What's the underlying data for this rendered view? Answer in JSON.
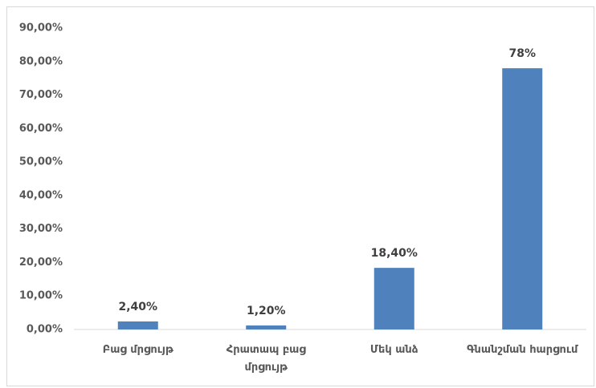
{
  "chart_data": {
    "type": "bar",
    "categories": [
      "Բաց մրցույթ",
      "Հրատապ բաց մրցույթ",
      "Մեկ անձ",
      "Գնանշման հարցում"
    ],
    "values": [
      2.4,
      1.2,
      18.4,
      78
    ],
    "value_labels": [
      "2,40%",
      "1,20%",
      "18,40%",
      "78%"
    ],
    "color": "#4f81bd",
    "ylim": [
      0,
      90
    ],
    "yticks": [
      {
        "value": 0,
        "label": "0,00%"
      },
      {
        "value": 10,
        "label": "10,00%"
      },
      {
        "value": 20,
        "label": "20,00%"
      },
      {
        "value": 30,
        "label": "30,00%"
      },
      {
        "value": 40,
        "label": "40,00%"
      },
      {
        "value": 50,
        "label": "50,00%"
      },
      {
        "value": 60,
        "label": "60,00%"
      },
      {
        "value": 70,
        "label": "70,00%"
      },
      {
        "value": 80,
        "label": "80,00%"
      },
      {
        "value": 90,
        "label": "90,00%"
      }
    ],
    "grid": false
  }
}
